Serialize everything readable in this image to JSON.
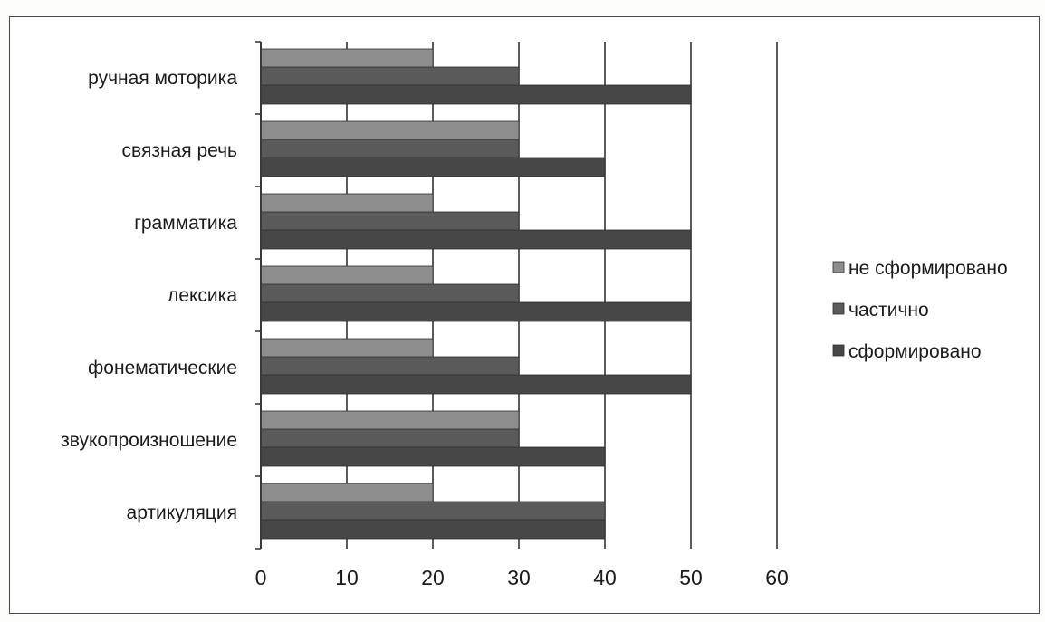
{
  "chart_data": {
    "type": "bar",
    "orientation": "horizontal",
    "categories": [
      "ручная моторика",
      "связная речь",
      "грамматика",
      "лексика",
      "фонематические",
      "звукопроизношение",
      "артикуляция"
    ],
    "series": [
      {
        "name": "не сформировано",
        "color": "#8e8e8e",
        "values": [
          20,
          30,
          20,
          20,
          20,
          30,
          20
        ]
      },
      {
        "name": "частично",
        "color": "#5a5a5a",
        "values": [
          30,
          30,
          30,
          30,
          30,
          30,
          40
        ]
      },
      {
        "name": "сформировано",
        "color": "#474747",
        "values": [
          50,
          40,
          50,
          50,
          50,
          40,
          40
        ]
      }
    ],
    "x_ticks": [
      "0",
      "10",
      "20",
      "30",
      "40",
      "50",
      "60"
    ],
    "xlim": [
      0,
      60
    ],
    "grid": "vertical",
    "legend_position": "right"
  }
}
